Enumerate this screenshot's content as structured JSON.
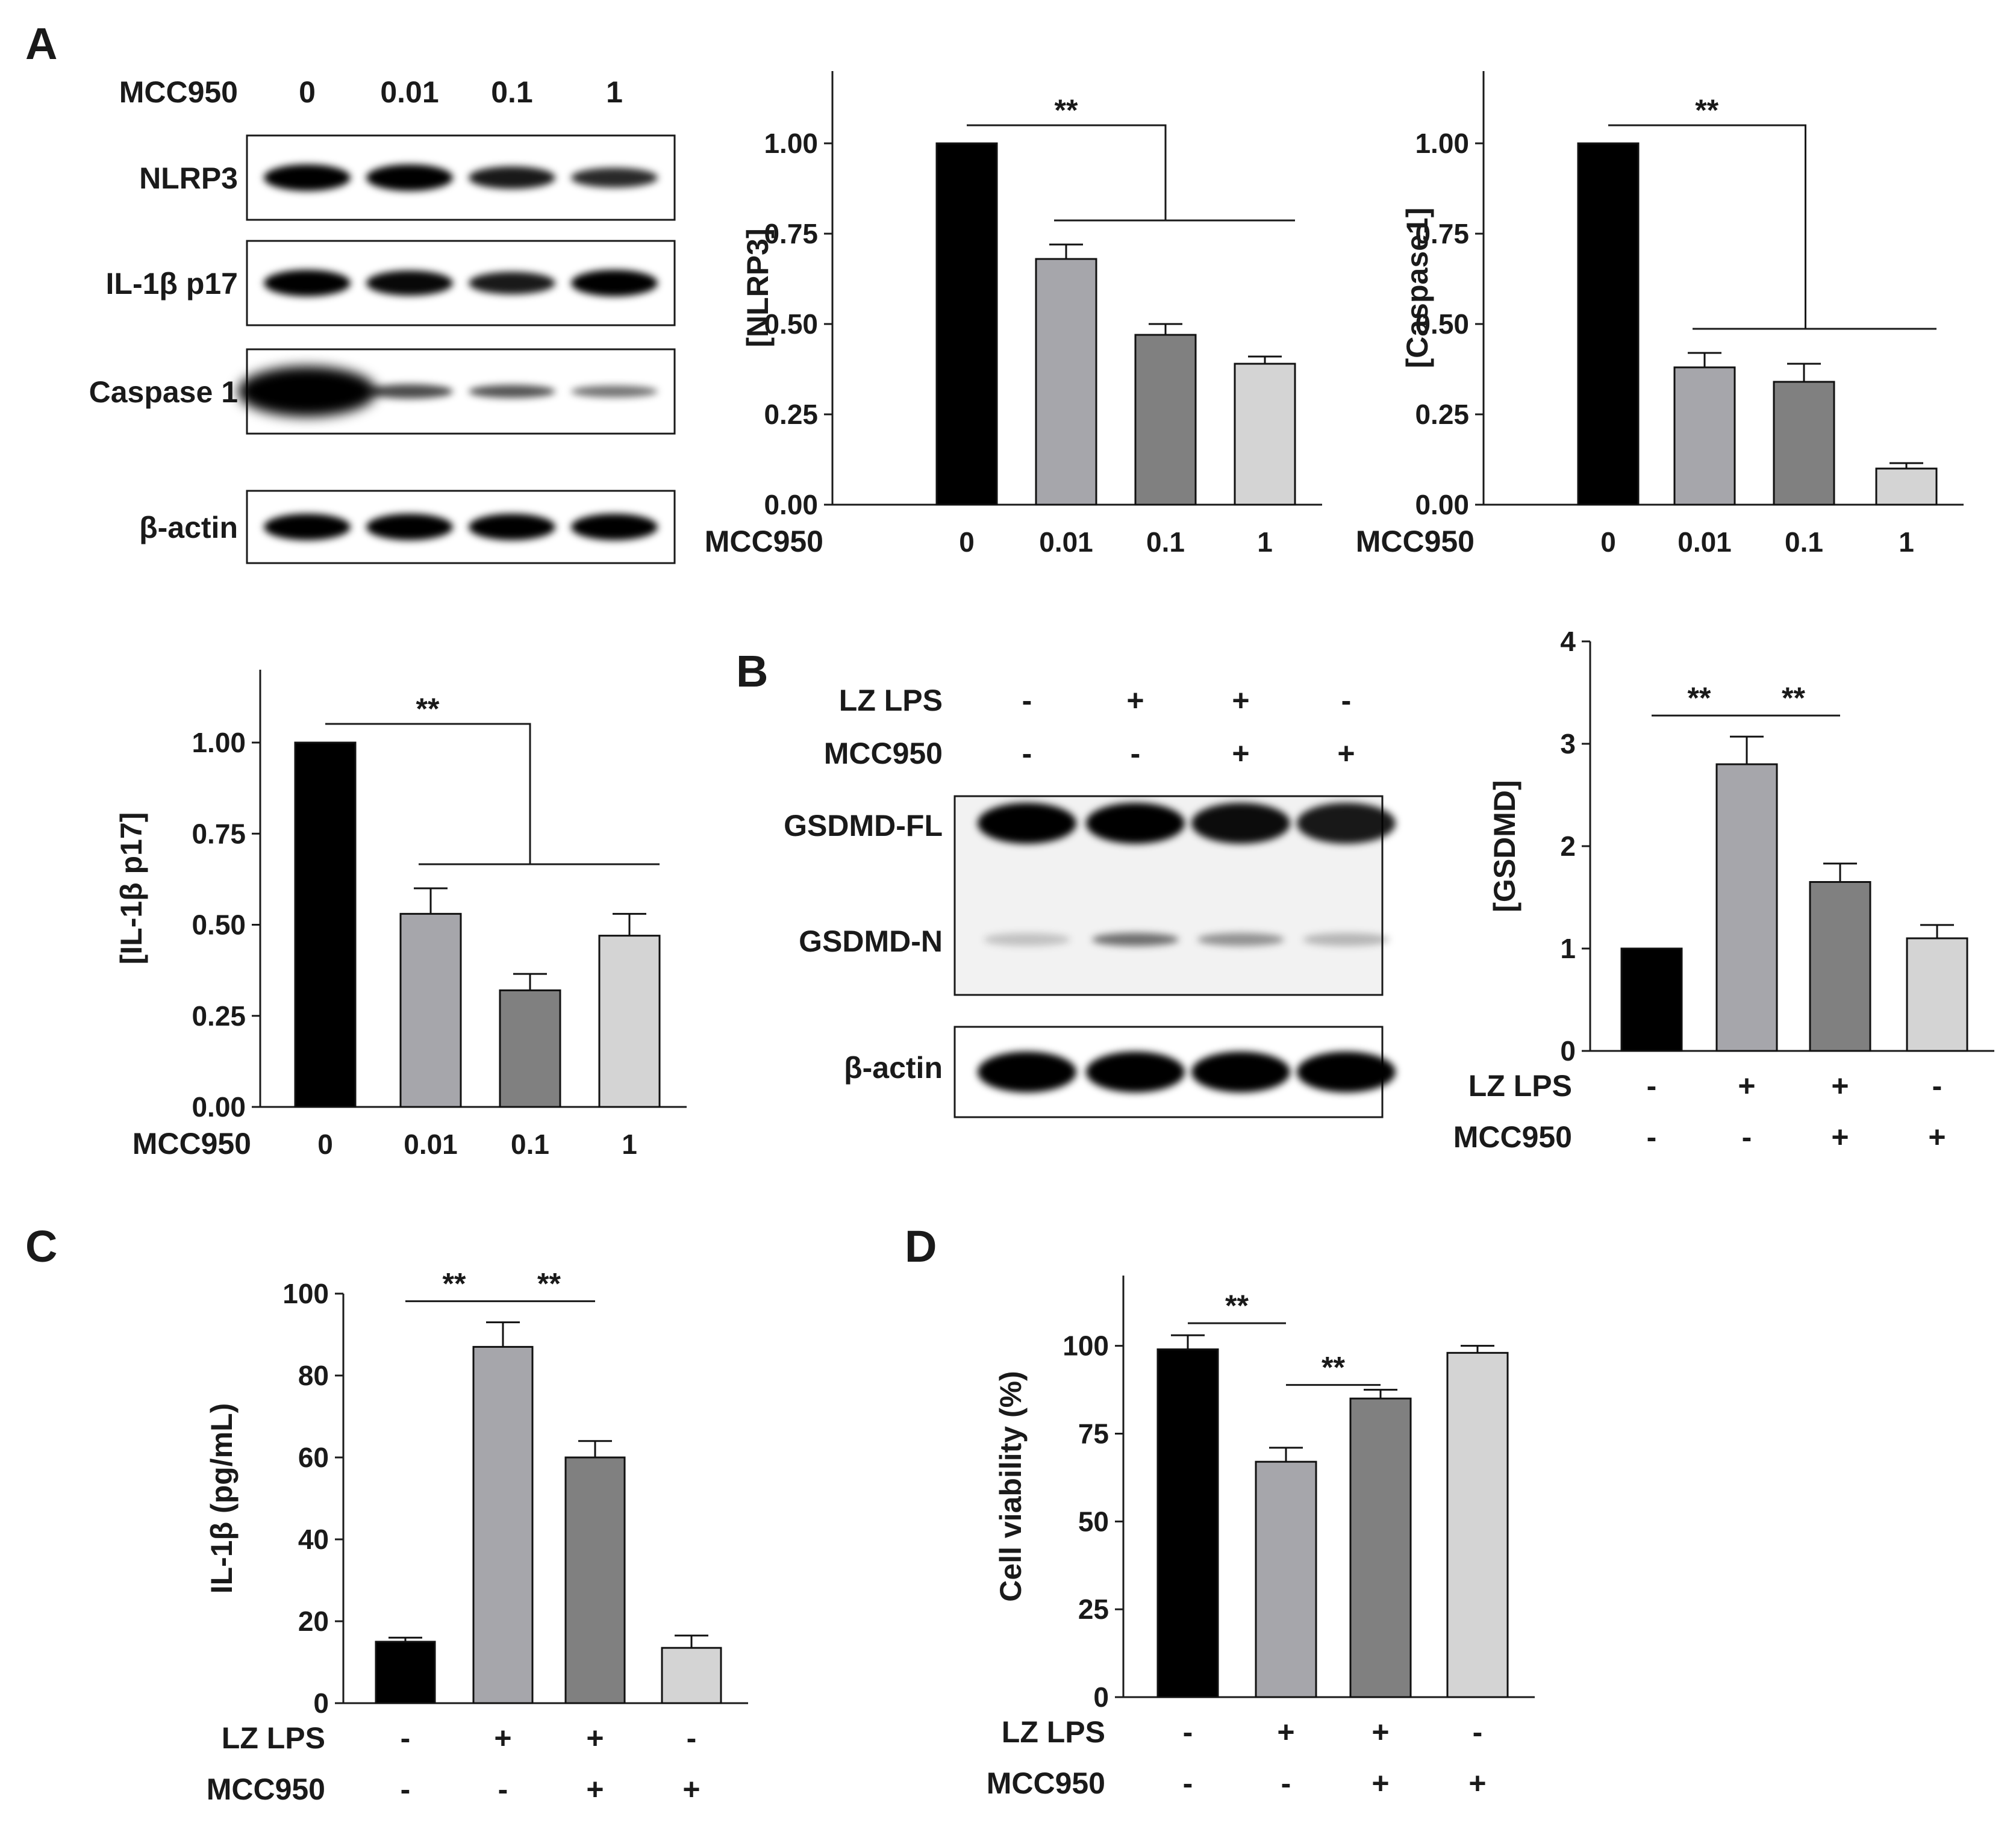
{
  "panels": {
    "A": "A",
    "B": "B",
    "C": "C",
    "D": "D"
  },
  "colors": {
    "bar_black": "#000000",
    "bar_light_gray": "#a6a6ab",
    "bar_mid_gray": "#808080",
    "bar_pale_gray": "#d4d4d4",
    "axis": "#1a1a1a"
  },
  "blot_a": {
    "row_title": "MCC950",
    "doses": [
      "0",
      "0.01",
      "0.1",
      "1"
    ],
    "bands": [
      {
        "label": "NLRP3",
        "intensity": [
          1.0,
          1.0,
          0.85,
          0.75
        ]
      },
      {
        "label": "IL-1β p17",
        "intensity": [
          1.0,
          0.95,
          0.85,
          1.0
        ]
      },
      {
        "label": "Caspase 1",
        "intensity": [
          1.0,
          0.55,
          0.5,
          0.3
        ]
      },
      {
        "label": "β-actin",
        "intensity": [
          1.0,
          1.0,
          1.0,
          1.0
        ]
      }
    ]
  },
  "blot_b": {
    "row_titles": [
      "LZ LPS",
      "MCC950"
    ],
    "lz_lps": [
      "-",
      "+",
      "+",
      "-"
    ],
    "mcc950": [
      "-",
      "-",
      "+",
      "+"
    ],
    "bands": [
      {
        "label": "GSDMD-FL",
        "intensity": [
          1.0,
          1.0,
          0.95,
          0.9
        ]
      },
      {
        "label": "GSDMD-N",
        "intensity": [
          0.2,
          0.55,
          0.4,
          0.25
        ]
      },
      {
        "label": "β-actin",
        "intensity": [
          1.0,
          1.0,
          1.0,
          1.0
        ]
      }
    ]
  },
  "chart_data": [
    {
      "id": "nlrp3",
      "type": "bar",
      "ylabel": "[NLRP3]",
      "xlabel": "MCC950",
      "categories": [
        "0",
        "0.01",
        "0.1",
        "1"
      ],
      "values": [
        1.0,
        0.68,
        0.47,
        0.39
      ],
      "errors": [
        0,
        0.04,
        0.03,
        0.02
      ],
      "ylim": [
        0,
        1.2
      ],
      "yticks": [
        "0.00",
        "0.25",
        "0.50",
        "0.75",
        "1.00"
      ],
      "significance": "**"
    },
    {
      "id": "caspase1",
      "type": "bar",
      "ylabel": "[Caspase1]",
      "xlabel": "MCC950",
      "categories": [
        "0",
        "0.01",
        "0.1",
        "1"
      ],
      "values": [
        1.0,
        0.38,
        0.34,
        0.1
      ],
      "errors": [
        0,
        0.04,
        0.05,
        0.015
      ],
      "ylim": [
        0,
        1.2
      ],
      "yticks": [
        "0.00",
        "0.25",
        "0.50",
        "0.75",
        "1.00"
      ],
      "significance": "**"
    },
    {
      "id": "il1b_p17",
      "type": "bar",
      "ylabel": "[IL-1β p17]",
      "xlabel": "MCC950",
      "categories": [
        "0",
        "0.01",
        "0.1",
        "1"
      ],
      "values": [
        1.0,
        0.53,
        0.32,
        0.47
      ],
      "errors": [
        0,
        0.07,
        0.045,
        0.06
      ],
      "ylim": [
        0,
        1.2
      ],
      "yticks": [
        "0.00",
        "0.25",
        "0.50",
        "0.75",
        "1.00"
      ],
      "significance": "**"
    },
    {
      "id": "gsdmd",
      "type": "bar",
      "ylabel": "[GSDMD]",
      "row_labels": [
        "LZ LPS",
        "MCC950"
      ],
      "lz_lps": [
        "-",
        "+",
        "+",
        "-"
      ],
      "mcc950": [
        "-",
        "-",
        "+",
        "+"
      ],
      "values": [
        1.0,
        2.8,
        1.65,
        1.1
      ],
      "errors": [
        0,
        0.27,
        0.18,
        0.13
      ],
      "ylim": [
        0,
        4
      ],
      "yticks": [
        "0",
        "1",
        "2",
        "3",
        "4"
      ],
      "significance": [
        "**",
        "**"
      ]
    },
    {
      "id": "il1b_elisa",
      "type": "bar",
      "ylabel": "IL-1β (pg/mL)",
      "row_labels": [
        "LZ LPS",
        "MCC950"
      ],
      "lz_lps": [
        "-",
        "+",
        "+",
        "-"
      ],
      "mcc950": [
        "-",
        "-",
        "+",
        "+"
      ],
      "values": [
        15,
        87,
        60,
        13.5
      ],
      "errors": [
        1,
        6,
        4,
        3
      ],
      "ylim": [
        0,
        100
      ],
      "yticks": [
        "0",
        "20",
        "40",
        "60",
        "80",
        "100"
      ],
      "significance": [
        "**",
        "**"
      ]
    },
    {
      "id": "viability",
      "type": "bar",
      "ylabel": "Cell viability (%)",
      "row_labels": [
        "LZ LPS",
        "MCC950"
      ],
      "lz_lps": [
        "-",
        "+",
        "+",
        "-"
      ],
      "mcc950": [
        "-",
        "-",
        "+",
        "+"
      ],
      "values": [
        99,
        67,
        85,
        98
      ],
      "errors": [
        4,
        4,
        2.5,
        2
      ],
      "ylim": [
        0,
        120
      ],
      "yticks": [
        "0",
        "25",
        "50",
        "75",
        "100"
      ],
      "significance": [
        "**",
        "**"
      ]
    }
  ]
}
